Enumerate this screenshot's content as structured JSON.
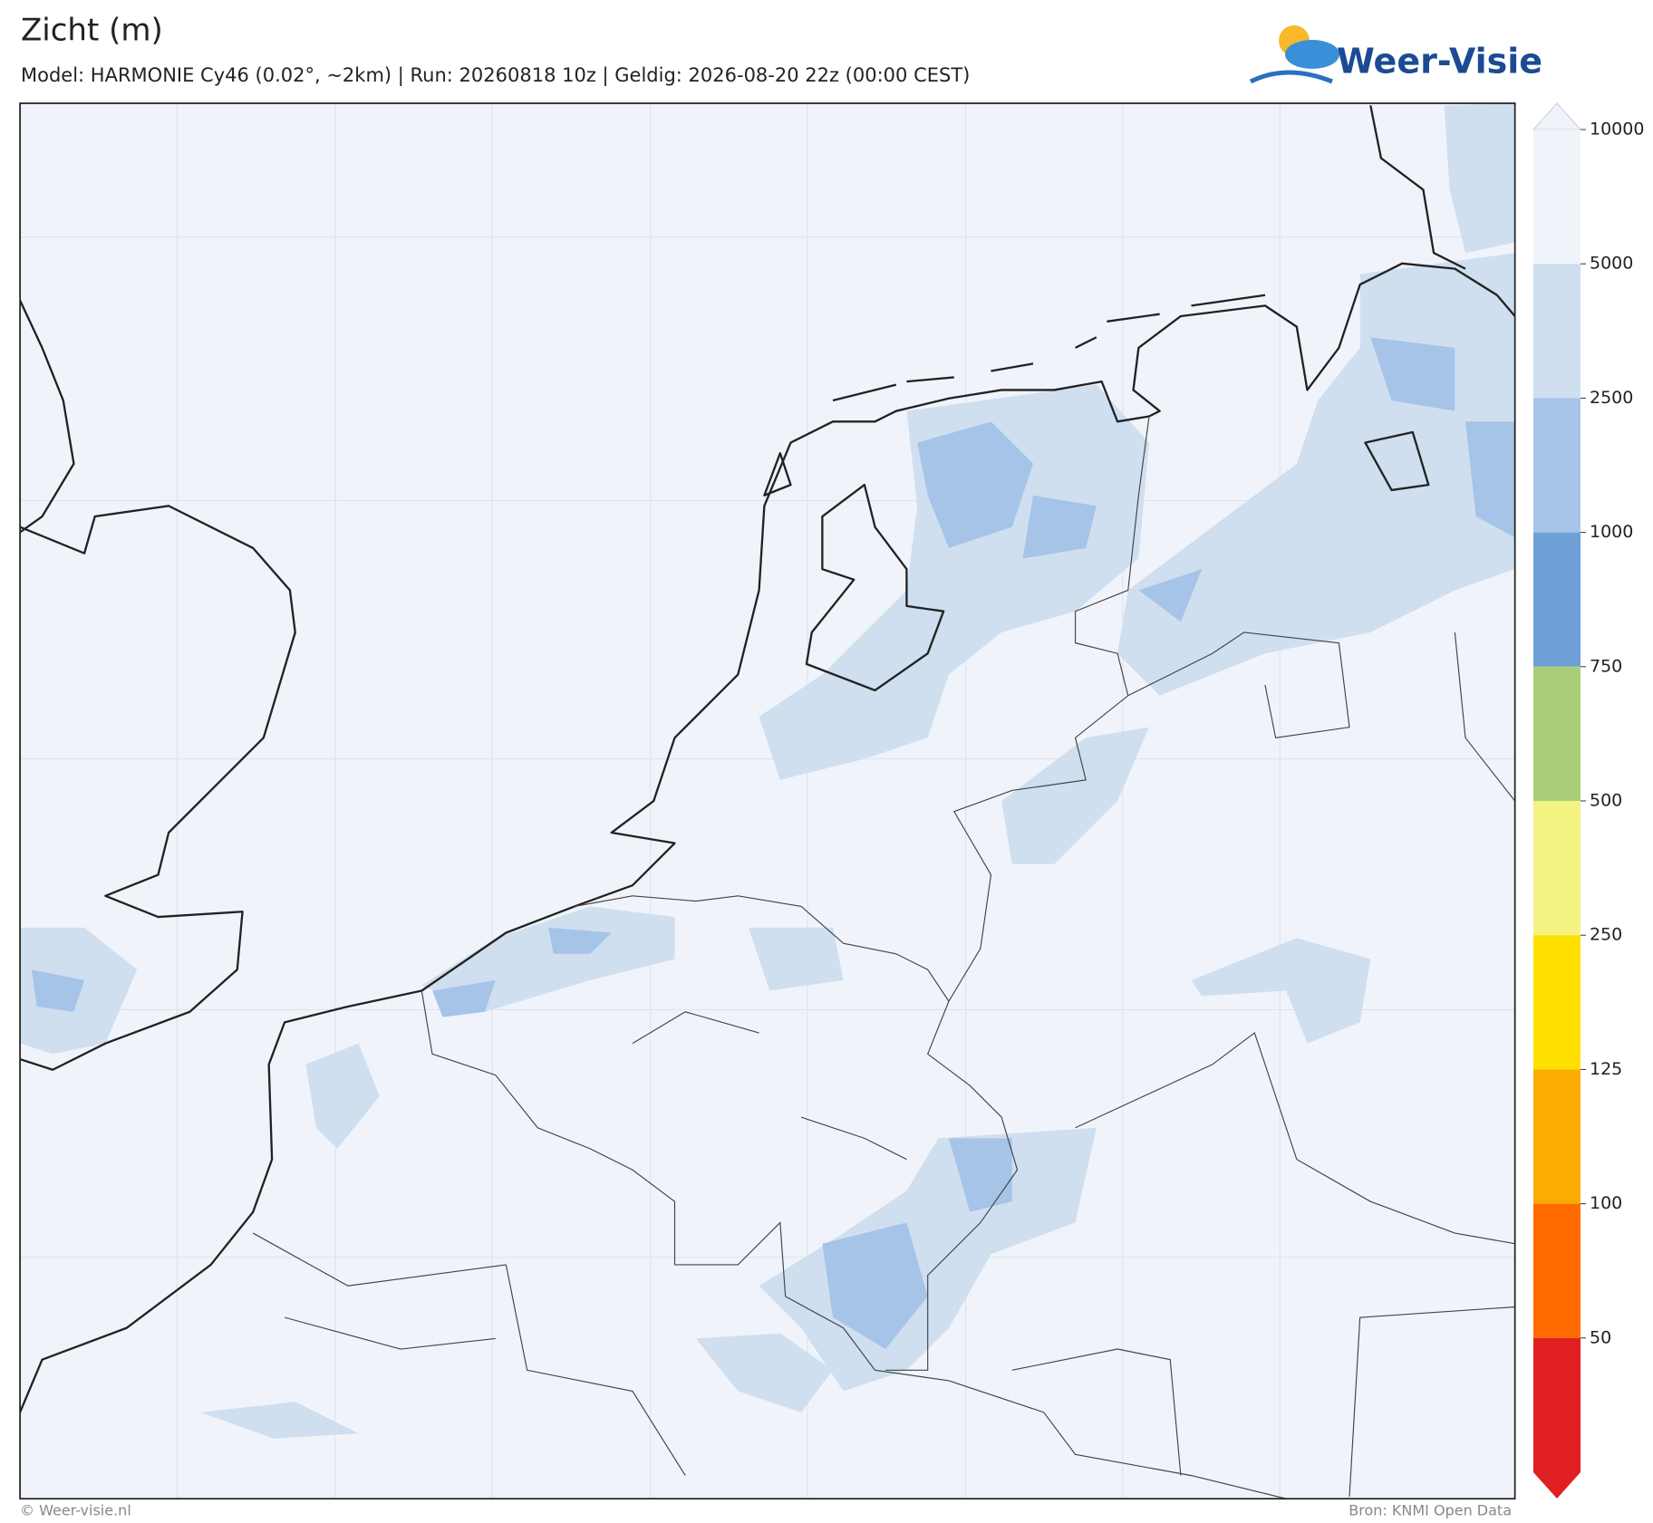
{
  "header": {
    "title": "Zicht (m)",
    "subtitle": "Model: HARMONIE Cy46 (0.02°, ~2km)  |  Run: 20260818 10z  |  Geldig: 2026-08-20 22z (00:00 CEST)"
  },
  "logo": {
    "text": "Weer-Visie"
  },
  "colorbar": {
    "ticks": [
      10000,
      5000,
      2500,
      1000,
      750,
      500,
      250,
      125,
      100,
      50
    ],
    "colors": [
      "#f0f4fa",
      "#cfdff0",
      "#a6c4e8",
      "#6fa0d8",
      "#a8cf78",
      "#f3f382",
      "#fde000",
      "#fcab00",
      "#fd6a00",
      "#e02020"
    ]
  },
  "footer": {
    "left": "© Weer-visie.nl",
    "right": "Bron: KNMI Open Data"
  }
}
